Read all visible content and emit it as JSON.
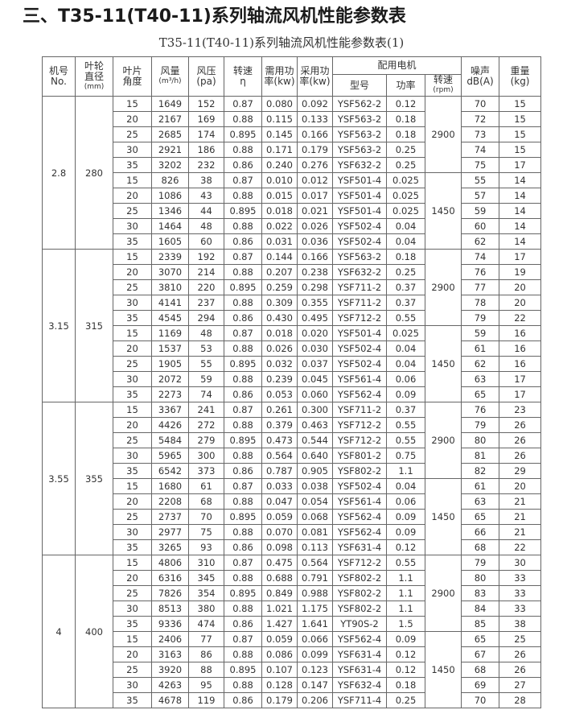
{
  "title": "三、T35-11(T40-11)系列轴流风机性能参数表",
  "subtitle": "T35-11(T40-11)系列轴流风机性能参数表(1)",
  "headers": {
    "no": [
      "机号",
      "No."
    ],
    "diameter": [
      "叶轮",
      "直径",
      "(mm)"
    ],
    "angle": [
      "叶片",
      "角度"
    ],
    "flow": [
      "风量",
      "(m³/h)"
    ],
    "pressure": [
      "风压",
      "(pa)"
    ],
    "speed": [
      "转速",
      "η"
    ],
    "req_power": [
      "需用功",
      "率(kw)"
    ],
    "used_power": [
      "采用功",
      "率(kw)"
    ],
    "motor": "配用电机",
    "motor_model": "型号",
    "motor_power": "功率",
    "motor_speed": [
      "转速",
      "(rpm)"
    ],
    "noise": [
      "噪声",
      "dB(A)"
    ],
    "weight": [
      "重量",
      "(kg)"
    ]
  },
  "groups": [
    {
      "no": "2.8",
      "diameter": "280",
      "speeds": [
        "2900",
        "1450"
      ],
      "rows": [
        [
          "15",
          "1649",
          "152",
          "0.87",
          "0.080",
          "0.092",
          "YSF562-2",
          "0.12",
          "70",
          "15"
        ],
        [
          "20",
          "2167",
          "169",
          "0.88",
          "0.115",
          "0.133",
          "YSF563-2",
          "0.18",
          "72",
          "15"
        ],
        [
          "25",
          "2685",
          "174",
          "0.895",
          "0.145",
          "0.166",
          "YSF563-2",
          "0.18",
          "73",
          "15"
        ],
        [
          "30",
          "2921",
          "186",
          "0.88",
          "0.171",
          "0.179",
          "YSF563-2",
          "0.25",
          "74",
          "15"
        ],
        [
          "35",
          "3202",
          "232",
          "0.86",
          "0.240",
          "0.276",
          "YSF632-2",
          "0.25",
          "75",
          "17"
        ],
        [
          "15",
          "826",
          "38",
          "0.87",
          "0.010",
          "0.012",
          "YSF501-4",
          "0.025",
          "55",
          "14"
        ],
        [
          "20",
          "1086",
          "43",
          "0.88",
          "0.015",
          "0.017",
          "YSF501-4",
          "0.025",
          "57",
          "14"
        ],
        [
          "25",
          "1346",
          "44",
          "0.895",
          "0.018",
          "0.021",
          "YSF501-4",
          "0.025",
          "59",
          "14"
        ],
        [
          "30",
          "1464",
          "48",
          "0.88",
          "0.022",
          "0.026",
          "YSF502-4",
          "0.04",
          "60",
          "14"
        ],
        [
          "35",
          "1605",
          "60",
          "0.86",
          "0.031",
          "0.036",
          "YSF502-4",
          "0.04",
          "62",
          "14"
        ]
      ]
    },
    {
      "no": "3.15",
      "diameter": "315",
      "speeds": [
        "2900",
        "1450"
      ],
      "rows": [
        [
          "15",
          "2339",
          "192",
          "0.87",
          "0.144",
          "0.166",
          "YSF563-2",
          "0.18",
          "74",
          "17"
        ],
        [
          "20",
          "3070",
          "214",
          "0.88",
          "0.207",
          "0.238",
          "YSF632-2",
          "0.25",
          "76",
          "19"
        ],
        [
          "25",
          "3810",
          "220",
          "0.895",
          "0.259",
          "0.298",
          "YSF711-2",
          "0.37",
          "77",
          "20"
        ],
        [
          "30",
          "4141",
          "237",
          "0.88",
          "0.309",
          "0.355",
          "YSF711-2",
          "0.37",
          "78",
          "20"
        ],
        [
          "35",
          "4545",
          "294",
          "0.86",
          "0.430",
          "0.495",
          "YSF712-2",
          "0.55",
          "79",
          "22"
        ],
        [
          "15",
          "1169",
          "48",
          "0.87",
          "0.018",
          "0.020",
          "YSF501-4",
          "0.025",
          "59",
          "16"
        ],
        [
          "20",
          "1537",
          "53",
          "0.88",
          "0.026",
          "0.030",
          "YSF502-4",
          "0.04",
          "61",
          "16"
        ],
        [
          "25",
          "1905",
          "55",
          "0.895",
          "0.032",
          "0.037",
          "YSF502-4",
          "0.04",
          "62",
          "16"
        ],
        [
          "30",
          "2072",
          "59",
          "0.88",
          "0.239",
          "0.045",
          "YSF561-4",
          "0.06",
          "63",
          "17"
        ],
        [
          "35",
          "2273",
          "74",
          "0.86",
          "0.053",
          "0.060",
          "YSF562-4",
          "0.09",
          "65",
          "17"
        ]
      ]
    },
    {
      "no": "3.55",
      "diameter": "355",
      "speeds": [
        "2900",
        "1450"
      ],
      "rows": [
        [
          "15",
          "3367",
          "241",
          "0.87",
          "0.261",
          "0.300",
          "YSF711-2",
          "0.37",
          "76",
          "23"
        ],
        [
          "20",
          "4426",
          "272",
          "0.88",
          "0.379",
          "0.463",
          "YSF712-2",
          "0.55",
          "79",
          "26"
        ],
        [
          "25",
          "5484",
          "279",
          "0.895",
          "0.473",
          "0.544",
          "YSF712-2",
          "0.55",
          "80",
          "26"
        ],
        [
          "30",
          "5965",
          "300",
          "0.88",
          "0.564",
          "0.640",
          "YSF801-2",
          "0.75",
          "81",
          "26"
        ],
        [
          "35",
          "6542",
          "373",
          "0.86",
          "0.787",
          "0.905",
          "YSF802-2",
          "1.1",
          "82",
          "29"
        ],
        [
          "15",
          "1680",
          "61",
          "0.87",
          "0.033",
          "0.038",
          "YSF502-4",
          "0.04",
          "61",
          "20"
        ],
        [
          "20",
          "2208",
          "68",
          "0.88",
          "0.047",
          "0.054",
          "YSF561-4",
          "0.06",
          "63",
          "21"
        ],
        [
          "25",
          "2737",
          "70",
          "0.895",
          "0.059",
          "0.068",
          "YSF562-4",
          "0.09",
          "65",
          "21"
        ],
        [
          "30",
          "2977",
          "75",
          "0.88",
          "0.070",
          "0.081",
          "YSF562-4",
          "0.09",
          "66",
          "21"
        ],
        [
          "35",
          "3265",
          "93",
          "0.86",
          "0.098",
          "0.113",
          "YSF631-4",
          "0.12",
          "68",
          "22"
        ]
      ]
    },
    {
      "no": "4",
      "diameter": "400",
      "speeds": [
        "2900",
        "1450"
      ],
      "rows": [
        [
          "15",
          "4806",
          "310",
          "0.87",
          "0.475",
          "0.564",
          "YSF712-2",
          "0.55",
          "79",
          "30"
        ],
        [
          "20",
          "6316",
          "345",
          "0.88",
          "0.688",
          "0.791",
          "YSF802-2",
          "1.1",
          "80",
          "33"
        ],
        [
          "25",
          "7826",
          "354",
          "0.895",
          "0.849",
          "0.988",
          "YSF802-2",
          "1.1",
          "83",
          "33"
        ],
        [
          "30",
          "8513",
          "380",
          "0.88",
          "1.021",
          "1.175",
          "YSF802-2",
          "1.1",
          "84",
          "33"
        ],
        [
          "35",
          "9336",
          "474",
          "0.86",
          "1.427",
          "1.641",
          "YT90S-2",
          "1.5",
          "85",
          "38"
        ],
        [
          "15",
          "2406",
          "77",
          "0.87",
          "0.059",
          "0.066",
          "YSF562-4",
          "0.09",
          "65",
          "25"
        ],
        [
          "20",
          "3163",
          "86",
          "0.88",
          "0.086",
          "0.099",
          "YSF631-4",
          "0.12",
          "67",
          "26"
        ],
        [
          "25",
          "3920",
          "88",
          "0.895",
          "0.107",
          "0.123",
          "YSF631-4",
          "0.12",
          "68",
          "26"
        ],
        [
          "30",
          "4263",
          "95",
          "0.88",
          "0.128",
          "0.147",
          "YSF632-4",
          "0.18",
          "69",
          "27"
        ],
        [
          "35",
          "4678",
          "119",
          "0.86",
          "0.179",
          "0.206",
          "YSF711-4",
          "0.25",
          "70",
          "28"
        ]
      ]
    }
  ]
}
